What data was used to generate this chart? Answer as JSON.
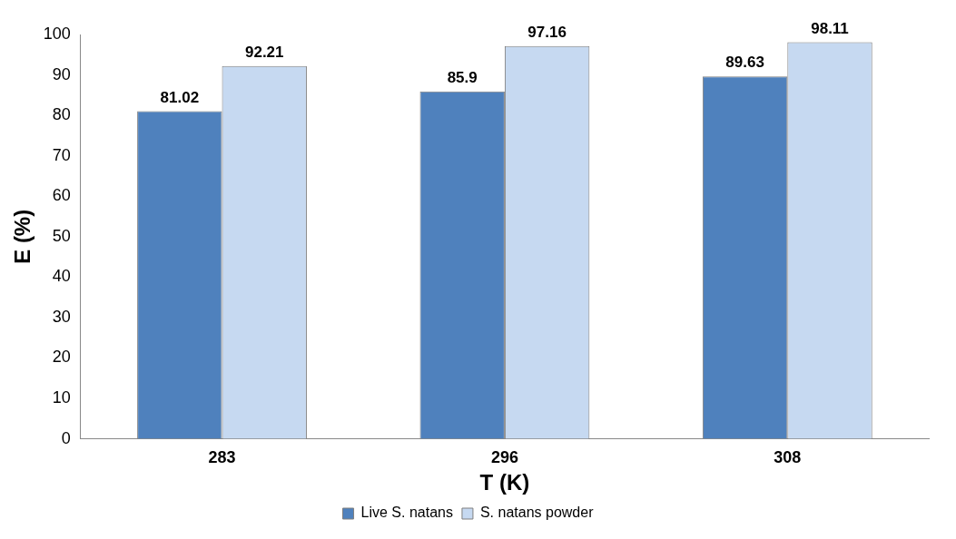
{
  "chart_data": {
    "type": "bar",
    "xlabel": "T (K)",
    "ylabel": "E (%)",
    "categories": [
      "283",
      "296",
      "308"
    ],
    "series": [
      {
        "name": "Live S. natans",
        "color": "#4f81bd",
        "values": [
          81.02,
          85.9,
          89.63
        ]
      },
      {
        "name": "S. natans powder",
        "color": "#c6d9f1",
        "values": [
          92.21,
          97.16,
          98.11
        ]
      }
    ],
    "ylim": [
      0,
      100
    ],
    "yticks": [
      0,
      10,
      20,
      30,
      40,
      50,
      60,
      70,
      80,
      90,
      100
    ],
    "grid": false,
    "legend": "bottom",
    "data_labels": true
  }
}
